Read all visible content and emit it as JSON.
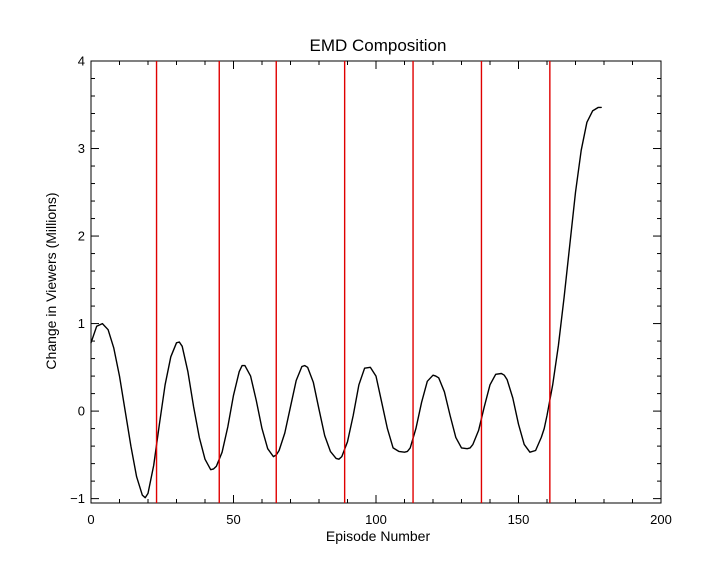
{
  "chart_data": {
    "type": "line",
    "title": "EMD Composition",
    "xlabel": "Episode Number",
    "ylabel": "Change in Viewers (Millions)",
    "xlim": [
      0,
      200
    ],
    "ylim": [
      -1.05,
      4
    ],
    "x_ticks": [
      0,
      50,
      100,
      150,
      200
    ],
    "x_tick_labels": [
      "0",
      "50",
      "100",
      "150",
      "200"
    ],
    "y_ticks": [
      -1,
      0,
      1,
      2,
      3,
      4
    ],
    "y_tick_labels": [
      "−1",
      "0",
      "1",
      "2",
      "3",
      "4"
    ],
    "grid": false,
    "legend": "none",
    "series": [
      {
        "color": "#000000",
        "x": [
          0,
          2,
          4,
          6,
          8,
          10,
          12,
          14,
          16,
          18,
          19,
          20,
          22,
          24,
          26,
          28,
          30,
          31,
          32,
          34,
          36,
          38,
          40,
          42,
          43,
          44,
          46,
          48,
          50,
          52,
          53,
          54,
          56,
          58,
          60,
          62,
          64,
          65,
          66,
          68,
          70,
          72,
          74,
          75,
          76,
          78,
          80,
          82,
          84,
          86,
          87,
          88,
          90,
          92,
          94,
          96,
          98,
          100,
          102,
          104,
          106,
          108,
          110,
          111,
          112,
          114,
          116,
          118,
          120,
          121,
          122,
          124,
          126,
          128,
          130,
          132,
          133,
          134,
          136,
          138,
          140,
          142,
          144,
          145,
          146,
          148,
          150,
          152,
          154,
          156,
          158,
          159,
          160,
          162,
          164,
          166,
          168,
          170,
          172,
          174,
          176,
          178,
          179
        ],
        "y": [
          0.78,
          0.97,
          1.0,
          0.93,
          0.72,
          0.4,
          0.0,
          -0.4,
          -0.75,
          -0.96,
          -0.99,
          -0.94,
          -0.62,
          -0.15,
          0.3,
          0.62,
          0.78,
          0.79,
          0.74,
          0.45,
          0.05,
          -0.3,
          -0.55,
          -0.67,
          -0.66,
          -0.63,
          -0.47,
          -0.18,
          0.18,
          0.45,
          0.52,
          0.52,
          0.4,
          0.12,
          -0.2,
          -0.43,
          -0.52,
          -0.5,
          -0.45,
          -0.25,
          0.05,
          0.35,
          0.51,
          0.52,
          0.5,
          0.33,
          0.02,
          -0.28,
          -0.46,
          -0.54,
          -0.55,
          -0.52,
          -0.35,
          -0.05,
          0.3,
          0.49,
          0.5,
          0.4,
          0.1,
          -0.2,
          -0.42,
          -0.46,
          -0.47,
          -0.46,
          -0.42,
          -0.2,
          0.1,
          0.34,
          0.41,
          0.4,
          0.38,
          0.22,
          -0.05,
          -0.3,
          -0.42,
          -0.43,
          -0.42,
          -0.38,
          -0.22,
          0.05,
          0.3,
          0.42,
          0.43,
          0.41,
          0.36,
          0.15,
          -0.15,
          -0.38,
          -0.47,
          -0.45,
          -0.3,
          -0.2,
          -0.05,
          0.3,
          0.75,
          1.3,
          1.9,
          2.5,
          2.98,
          3.3,
          3.43,
          3.47,
          3.47
        ]
      }
    ],
    "vertical_lines": {
      "color": "#e00000",
      "x": [
        23,
        45,
        65,
        89,
        113,
        137,
        161
      ]
    }
  }
}
